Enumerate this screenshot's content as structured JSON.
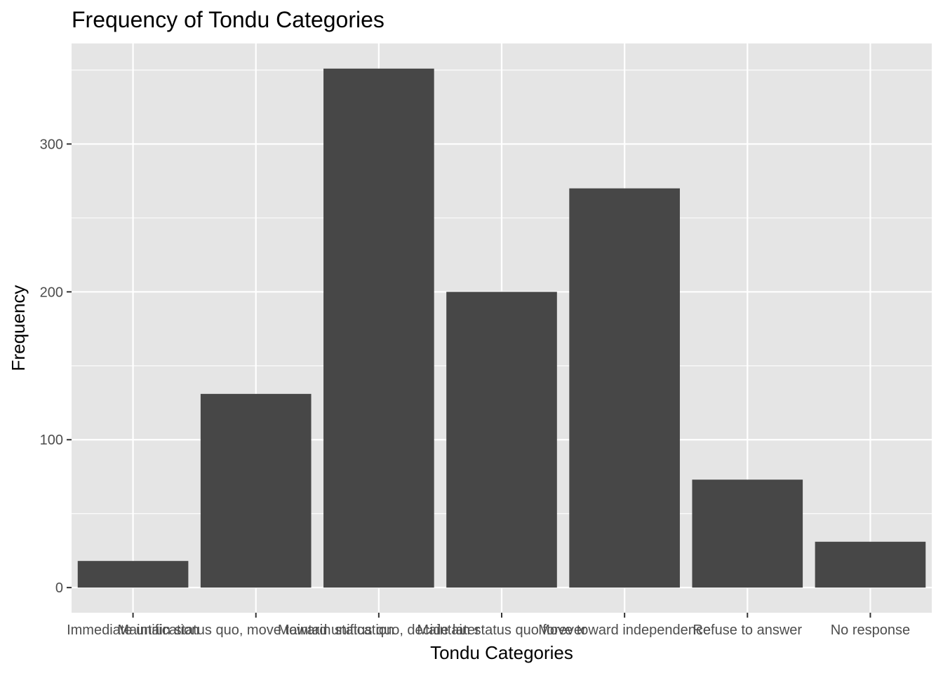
{
  "chart_data": {
    "type": "bar",
    "title": "Frequency of Tondu Categories",
    "xlabel": "Tondu Categories",
    "ylabel": "Frequency",
    "categories": [
      "Immediate unification",
      "Maintain status quo, move toward unification",
      "Maintain status quo, decide later",
      "Maintain status quo forever",
      "Move toward independence",
      "Refuse to answer",
      "No response"
    ],
    "values": [
      18,
      131,
      351,
      200,
      270,
      73,
      31
    ],
    "ylim": [
      -17,
      368
    ],
    "yticks": [
      0,
      100,
      200,
      300
    ],
    "grid": true,
    "legend": "none",
    "colors": {
      "bar": "#474747",
      "panel": "#e5e5e5",
      "grid": "#ffffff"
    }
  }
}
